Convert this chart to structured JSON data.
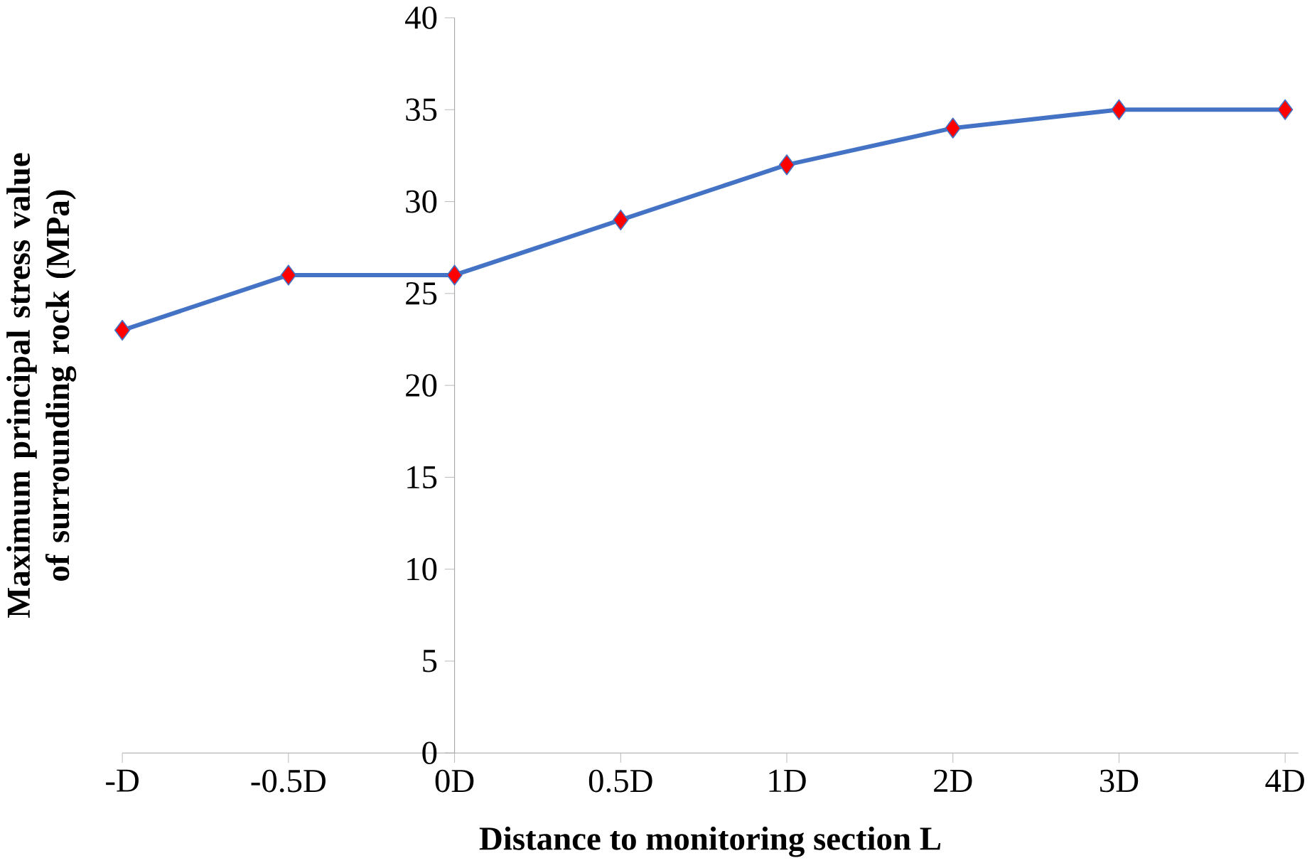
{
  "chart_data": {
    "type": "line",
    "xlabel": "Distance to monitoring section L",
    "ylabel": "Maximum principal stress value of surrounding rock (MPa)",
    "categories": [
      "-D",
      "-0.5D",
      "0D",
      "0.5D",
      "1D",
      "2D",
      "3D",
      "4D"
    ],
    "series": [
      {
        "color": "#4472c4",
        "values": [
          23,
          26,
          26,
          29,
          32,
          34,
          35,
          35
        ]
      }
    ],
    "ylim": [
      0,
      40
    ],
    "yticks": [
      0,
      5,
      10,
      15,
      20,
      25,
      30,
      35,
      40
    ],
    "grid": false,
    "legend": false,
    "marker": "diamond",
    "line_style": "solid"
  }
}
